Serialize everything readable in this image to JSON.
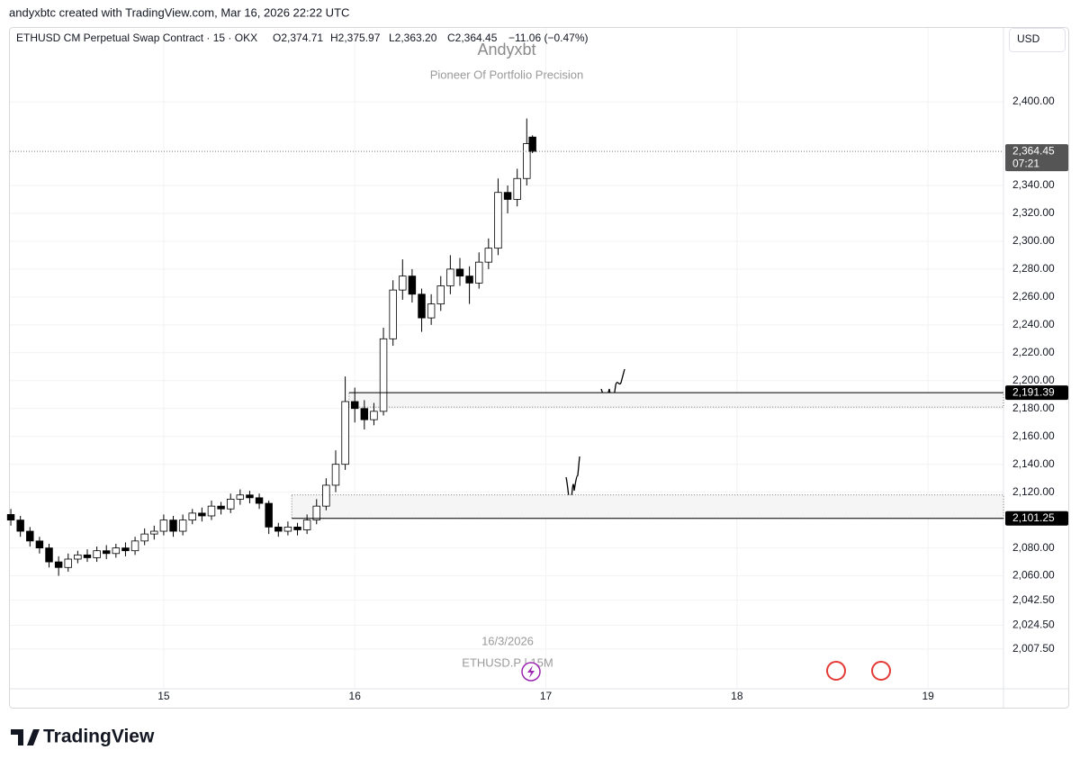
{
  "top_bar": "andyxbtc created with TradingView.com, Mar 16, 2026 22:22 UTC",
  "header": {
    "symbol": "ETHUSD CM Perpetual Swap Contract · 15 · OKX",
    "open": "O2,374.71",
    "high": "H2,375.97",
    "low": "L2,363.20",
    "close": "C2,364.45",
    "change": "−11.06 (−0.47%)"
  },
  "currency_button": "USD",
  "footer_logo": "TradingView",
  "chart_data": {
    "type": "candlestick",
    "watermark": {
      "title": "Andyxbt",
      "subtitle": "Pioneer Of Portfolio Precision",
      "date": "16/3/2026",
      "symbol": "ETHUSD.P | 15M"
    },
    "x": [
      14.2,
      14.25,
      14.3,
      14.35,
      14.4,
      14.45,
      14.5,
      14.55,
      14.6,
      14.65,
      14.7,
      14.75,
      14.8,
      14.85,
      14.9,
      14.95,
      15.0,
      15.05,
      15.1,
      15.15,
      15.2,
      15.25,
      15.3,
      15.35,
      15.4,
      15.45,
      15.5,
      15.55,
      15.6,
      15.65,
      15.7,
      15.75,
      15.8,
      15.85,
      15.9,
      15.95,
      16.0,
      16.05,
      16.1,
      16.15,
      16.2,
      16.25,
      16.3,
      16.35,
      16.4,
      16.45,
      16.5,
      16.55,
      16.6,
      16.65,
      16.7,
      16.75,
      16.8,
      16.85,
      16.9,
      16.93
    ],
    "open": [
      2104,
      2100,
      2092,
      2085,
      2080,
      2070,
      2066,
      2072,
      2075,
      2073,
      2078,
      2076,
      2080,
      2078,
      2085,
      2090,
      2092,
      2100,
      2092,
      2100,
      2105,
      2103,
      2110,
      2108,
      2115,
      2118,
      2116,
      2112,
      2095,
      2092,
      2095,
      2093,
      2100,
      2110,
      2125,
      2140,
      2185,
      2180,
      2172,
      2178,
      2230,
      2265,
      2275,
      2262,
      2245,
      2255,
      2268,
      2280,
      2275,
      2270,
      2285,
      2295,
      2335,
      2330,
      2345,
      2374.71
    ],
    "high": [
      2108,
      2103,
      2095,
      2088,
      2083,
      2074,
      2076,
      2078,
      2079,
      2081,
      2082,
      2083,
      2084,
      2088,
      2094,
      2096,
      2104,
      2103,
      2104,
      2108,
      2109,
      2114,
      2113,
      2119,
      2122,
      2121,
      2119,
      2114,
      2098,
      2099,
      2098,
      2104,
      2115,
      2130,
      2150,
      2203,
      2195,
      2186,
      2184,
      2238,
      2272,
      2287,
      2280,
      2266,
      2262,
      2275,
      2290,
      2288,
      2282,
      2292,
      2302,
      2345,
      2340,
      2352,
      2388,
      2375.97
    ],
    "low": [
      2096,
      2088,
      2081,
      2076,
      2066,
      2060,
      2063,
      2069,
      2070,
      2070,
      2072,
      2073,
      2074,
      2075,
      2082,
      2086,
      2089,
      2088,
      2089,
      2097,
      2099,
      2100,
      2104,
      2105,
      2111,
      2112,
      2108,
      2090,
      2088,
      2089,
      2089,
      2090,
      2097,
      2107,
      2120,
      2136,
      2170,
      2165,
      2168,
      2175,
      2225,
      2258,
      2256,
      2235,
      2240,
      2250,
      2262,
      2268,
      2255,
      2266,
      2280,
      2290,
      2320,
      2325,
      2340,
      2363.2
    ],
    "close": [
      2100,
      2092,
      2085,
      2080,
      2070,
      2066,
      2072,
      2075,
      2073,
      2078,
      2076,
      2080,
      2078,
      2085,
      2090,
      2092,
      2100,
      2092,
      2100,
      2105,
      2103,
      2110,
      2108,
      2115,
      2118,
      2116,
      2112,
      2095,
      2092,
      2095,
      2093,
      2100,
      2110,
      2125,
      2140,
      2185,
      2180,
      2172,
      2178,
      2230,
      2265,
      2275,
      2262,
      2245,
      2255,
      2268,
      2280,
      2275,
      2270,
      2285,
      2295,
      2335,
      2330,
      2345,
      2370,
      2364.45
    ],
    "up_color": "#ffffff",
    "down_color": "#000000",
    "wick_color": "#000000",
    "xlim": [
      14.195,
      19.395
    ],
    "xticks": [
      15,
      16,
      17,
      18,
      19
    ],
    "ylim": [
      1979,
      2453
    ],
    "yticks": [
      {
        "value": 2400,
        "label": "2,400.00"
      },
      {
        "value": 2340,
        "label": "2,340.00"
      },
      {
        "value": 2320,
        "label": "2,320.00"
      },
      {
        "value": 2300,
        "label": "2,300.00"
      },
      {
        "value": 2280,
        "label": "2,280.00"
      },
      {
        "value": 2260,
        "label": "2,260.00"
      },
      {
        "value": 2240,
        "label": "2,240.00"
      },
      {
        "value": 2220,
        "label": "2,220.00"
      },
      {
        "value": 2200,
        "label": "2,200.00"
      },
      {
        "value": 2180,
        "label": "2,180.00"
      },
      {
        "value": 2160,
        "label": "2,160.00"
      },
      {
        "value": 2140,
        "label": "2,140.00"
      },
      {
        "value": 2120,
        "label": "2,120.00"
      },
      {
        "value": 2080,
        "label": "2,080.00"
      },
      {
        "value": 2060,
        "label": "2,060.00"
      },
      {
        "value": 2042.5,
        "label": "2,042.50"
      },
      {
        "value": 2024.5,
        "label": "2,024.50"
      },
      {
        "value": 2007.5,
        "label": "2,007.50"
      }
    ],
    "grid": true,
    "zones": [
      {
        "low": 2181,
        "high": 2191.39,
        "start": 15.97
      },
      {
        "low": 2101.25,
        "high": 2118,
        "start": 15.67
      }
    ],
    "price_lines": [
      {
        "value": 2191.39,
        "label": "2,191.39"
      },
      {
        "value": 2101.25,
        "label": "2,101.25"
      }
    ],
    "last_price": {
      "value": 2364.45,
      "label": "2,364.45",
      "countdown": "07:21"
    }
  }
}
